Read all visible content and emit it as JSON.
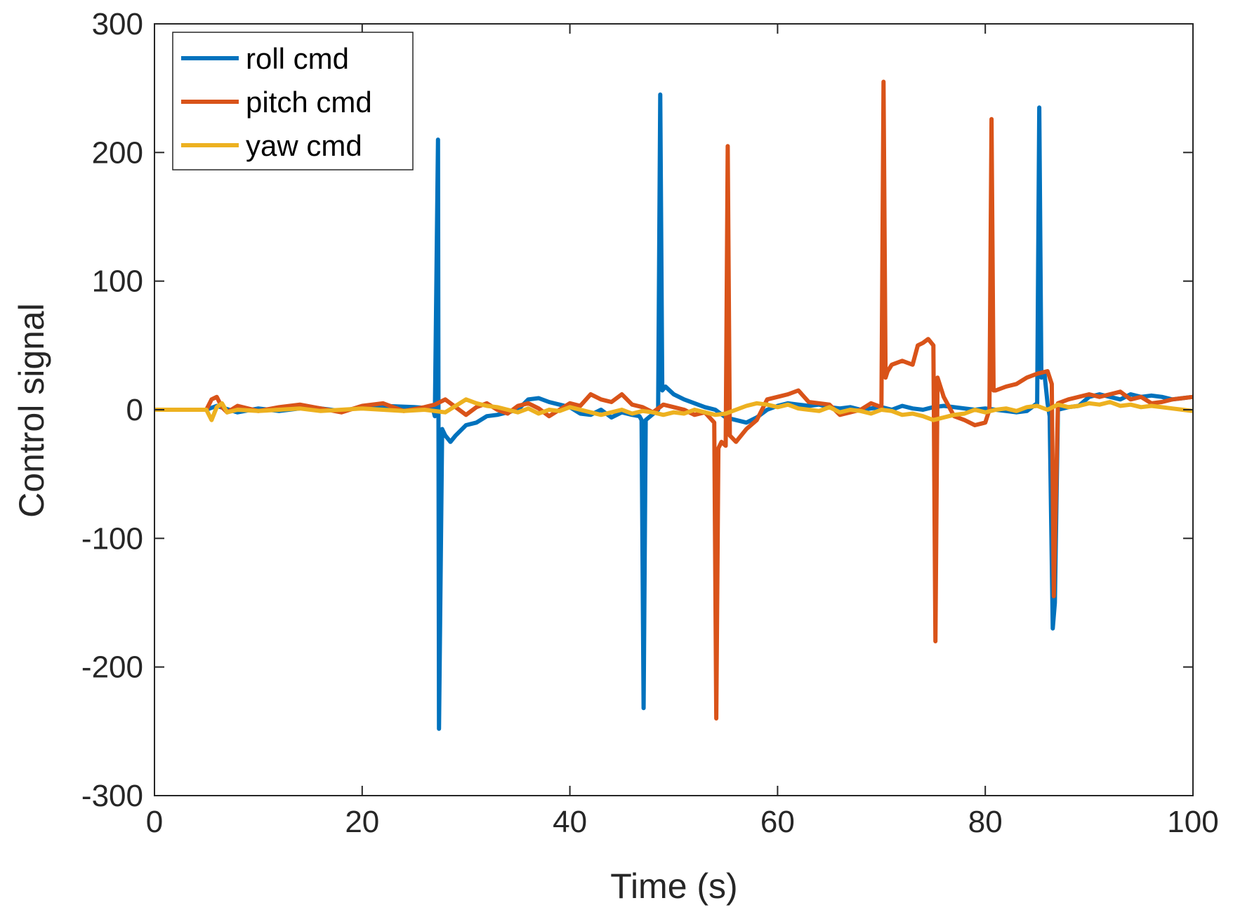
{
  "chart_data": {
    "type": "line",
    "title": "",
    "xlabel": "Time (s)",
    "ylabel": "Control signal",
    "xlim": [
      0,
      100
    ],
    "ylim": [
      -300,
      300
    ],
    "xticks": [
      0,
      20,
      40,
      60,
      80,
      100
    ],
    "yticks": [
      -300,
      -200,
      -100,
      0,
      100,
      200,
      300
    ],
    "xtick_labels": [
      "0",
      "20",
      "40",
      "60",
      "80",
      "100"
    ],
    "ytick_labels": [
      "-300",
      "-200",
      "-100",
      "0",
      "100",
      "200",
      "300"
    ],
    "grid": false,
    "legend_position": "top-left",
    "series": [
      {
        "name": "roll cmd",
        "color": "#0072BD",
        "x": [
          0,
          5,
          6,
          8,
          10,
          12,
          15,
          18,
          20,
          22,
          25,
          26.8,
          27.0,
          27.3,
          27.4,
          27.7,
          28,
          28.5,
          29,
          30,
          31,
          32,
          33,
          34,
          35,
          36,
          37,
          38,
          39,
          40,
          41,
          42,
          43,
          44,
          45,
          46,
          46.7,
          46.9,
          47.1,
          47.3,
          48.5,
          48.7,
          48.9,
          49.2,
          50,
          51,
          52,
          53,
          54,
          55,
          56,
          57,
          58,
          59,
          60,
          61,
          62,
          63,
          64,
          65,
          66,
          67,
          68,
          69,
          70,
          71,
          72,
          73,
          74,
          75,
          76,
          77,
          78,
          79,
          80,
          81,
          82,
          83,
          84,
          85.0,
          85.2,
          85.4,
          85.7,
          86.0,
          86.2,
          86.5,
          86.7,
          87,
          88,
          89,
          90,
          91,
          92,
          93,
          94,
          95,
          96,
          97,
          98,
          99,
          100
        ],
        "y": [
          0,
          0,
          3,
          -2,
          1,
          -1,
          2,
          -1,
          2,
          3,
          2,
          1,
          -5,
          210,
          -248,
          -15,
          -20,
          -25,
          -20,
          -12,
          -10,
          -5,
          -4,
          -2,
          0,
          8,
          9,
          6,
          4,
          2,
          -3,
          -4,
          0,
          -6,
          -2,
          -4,
          -5,
          -8,
          -232,
          -8,
          0,
          245,
          15,
          18,
          12,
          8,
          5,
          2,
          0,
          -6,
          -8,
          -10,
          -6,
          0,
          3,
          5,
          4,
          3,
          4,
          2,
          1,
          2,
          0,
          1,
          2,
          0,
          3,
          1,
          0,
          2,
          3,
          2,
          1,
          0,
          1,
          0,
          -1,
          -2,
          -1,
          5,
          235,
          25,
          28,
          5,
          -5,
          -170,
          -150,
          0,
          2,
          3,
          10,
          12,
          10,
          8,
          12,
          10,
          11,
          10,
          8,
          9,
          10
        ]
      },
      {
        "name": "pitch cmd",
        "color": "#D95319",
        "x": [
          0,
          5,
          5.5,
          6,
          6.5,
          7,
          8,
          10,
          12,
          14,
          16,
          18,
          20,
          22,
          24,
          26,
          27,
          28,
          29,
          30,
          31,
          32,
          33,
          34,
          35,
          36,
          37,
          38,
          39,
          40,
          41,
          42,
          43,
          44,
          45,
          46,
          47,
          48,
          49,
          50,
          51,
          52,
          53,
          53.9,
          54.1,
          54.3,
          54.6,
          55.0,
          55.2,
          55.4,
          56,
          57,
          58,
          59,
          60,
          61,
          62,
          63,
          64,
          65,
          66,
          67,
          68,
          69,
          70.0,
          70.2,
          70.4,
          70.6,
          71,
          72,
          73,
          73.5,
          74,
          74.5,
          75,
          75.2,
          75.4,
          75.6,
          76,
          77,
          78,
          79,
          80,
          80.4,
          80.6,
          80.8,
          81,
          82,
          83,
          84,
          85,
          86,
          86.4,
          86.6,
          87,
          88,
          89,
          90,
          91,
          92,
          93,
          94,
          95,
          96,
          97,
          98,
          99,
          100
        ],
        "y": [
          0,
          0,
          8,
          10,
          2,
          -2,
          3,
          -1,
          2,
          4,
          1,
          -2,
          3,
          5,
          -1,
          2,
          4,
          8,
          2,
          -4,
          2,
          5,
          0,
          -3,
          3,
          5,
          1,
          -5,
          0,
          5,
          3,
          12,
          8,
          6,
          12,
          4,
          2,
          -2,
          4,
          2,
          0,
          -4,
          -2,
          -10,
          -240,
          -30,
          -25,
          -28,
          205,
          -20,
          -25,
          -15,
          -8,
          8,
          10,
          12,
          15,
          6,
          5,
          4,
          -4,
          -2,
          0,
          5,
          2,
          255,
          25,
          30,
          35,
          38,
          35,
          50,
          52,
          55,
          50,
          -180,
          25,
          20,
          10,
          -5,
          -8,
          -12,
          -10,
          0,
          226,
          15,
          15,
          18,
          20,
          25,
          28,
          30,
          20,
          -145,
          5,
          8,
          10,
          12,
          10,
          12,
          14,
          8,
          10,
          5,
          6,
          8,
          9,
          10
        ]
      },
      {
        "name": "yaw cmd",
        "color": "#EDB120",
        "x": [
          0,
          5,
          5.5,
          6,
          6.5,
          7,
          8,
          10,
          12,
          14,
          16,
          18,
          20,
          22,
          24,
          26,
          28,
          29,
          30,
          31,
          32,
          33,
          34,
          35,
          36,
          37,
          38,
          39,
          40,
          41,
          42,
          43,
          44,
          45,
          46,
          47,
          48,
          49,
          50,
          51,
          52,
          53,
          54,
          55,
          56,
          57,
          58,
          59,
          60,
          61,
          62,
          63,
          64,
          65,
          66,
          67,
          68,
          69,
          70,
          71,
          72,
          73,
          74,
          75,
          76,
          77,
          78,
          79,
          80,
          81,
          82,
          83,
          84,
          85,
          86,
          87,
          88,
          89,
          90,
          91,
          92,
          93,
          94,
          95,
          96,
          97,
          98,
          99,
          100
        ],
        "y": [
          0,
          0,
          -8,
          2,
          5,
          -2,
          0,
          -1,
          0,
          1,
          -1,
          0,
          1,
          0,
          -1,
          0,
          -2,
          3,
          8,
          5,
          3,
          2,
          0,
          -2,
          1,
          -3,
          0,
          -1,
          2,
          0,
          -2,
          -4,
          -2,
          0,
          -3,
          -1,
          -2,
          -4,
          -2,
          -3,
          0,
          -2,
          -4,
          -3,
          0,
          3,
          5,
          4,
          2,
          4,
          1,
          0,
          -1,
          2,
          -2,
          0,
          -1,
          -3,
          0,
          -1,
          -4,
          -3,
          -5,
          -8,
          -6,
          -4,
          -3,
          0,
          -2,
          0,
          1,
          -1,
          2,
          3,
          0,
          4,
          2,
          3,
          5,
          4,
          6,
          3,
          4,
          2,
          3,
          2,
          1,
          0,
          -1
        ]
      }
    ]
  }
}
